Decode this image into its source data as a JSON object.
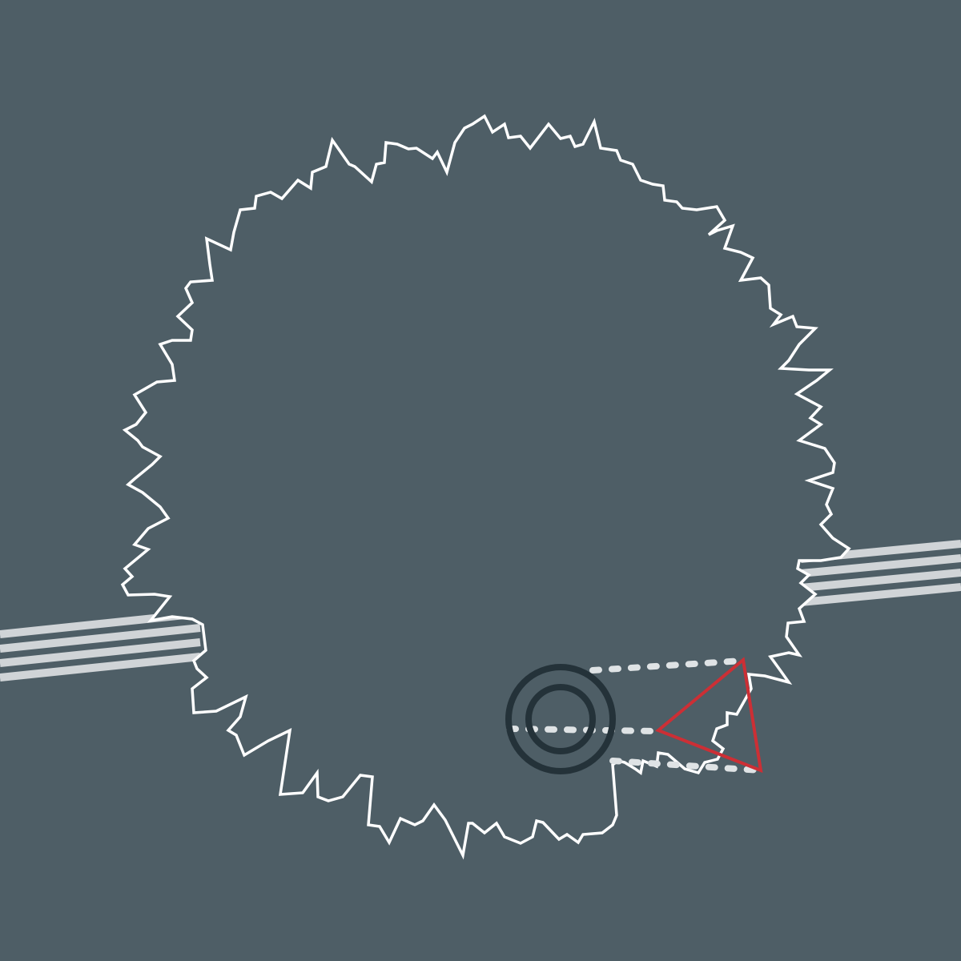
{
  "colors": {
    "background": "#4e5e66",
    "outline": "#ffffff",
    "rails": "#d0d4d7",
    "connector": "#dfe3e5",
    "target": "#243239",
    "pointer": "#cc2f35"
  },
  "icons": {
    "target": "concentric-circle-target-icon",
    "pointer": "triangle-pointer-icon"
  }
}
